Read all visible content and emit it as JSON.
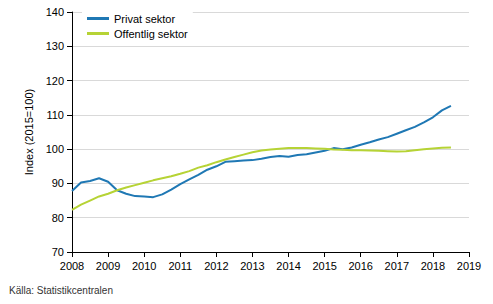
{
  "chart_data": {
    "type": "line",
    "y_label": "Index (2015=100)",
    "source": "Källa: Statistikcentralen",
    "x": [
      2008,
      2008.25,
      2008.5,
      2008.75,
      2009,
      2009.25,
      2009.5,
      2009.75,
      2010,
      2010.25,
      2010.5,
      2010.75,
      2011,
      2011.25,
      2011.5,
      2011.75,
      2012,
      2012.25,
      2012.5,
      2012.75,
      2013,
      2013.25,
      2013.5,
      2013.75,
      2014,
      2014.25,
      2014.5,
      2014.75,
      2015,
      2015.25,
      2015.5,
      2015.75,
      2016,
      2016.25,
      2016.5,
      2016.75,
      2017,
      2017.25,
      2017.5,
      2017.75,
      2018,
      2018.25,
      2018.5
    ],
    "series": [
      {
        "name": "Privat sektor",
        "color": "#1f78b4",
        "values": [
          87.8,
          90.3,
          90.7,
          91.5,
          90.5,
          88,
          87,
          86.3,
          86.2,
          86,
          86.8,
          88.2,
          89.8,
          91.2,
          92.5,
          94,
          95,
          96.3,
          96.5,
          96.7,
          96.8,
          97.2,
          97.7,
          98,
          97.8,
          98.3,
          98.5,
          99,
          99.5,
          100.3,
          100,
          100.5,
          101.3,
          102,
          102.8,
          103.5,
          104.5,
          105.5,
          106.5,
          107.8,
          109.3,
          111.3,
          112.6
        ]
      },
      {
        "name": "Offentlig sektor",
        "color": "#b6d335",
        "values": [
          82.3,
          83.8,
          85,
          86.2,
          87,
          88,
          88.8,
          89.5,
          90.2,
          90.9,
          91.5,
          92.1,
          92.8,
          93.6,
          94.6,
          95.3,
          96.2,
          97,
          97.7,
          98.4,
          99.1,
          99.6,
          99.9,
          100.1,
          100.3,
          100.3,
          100.3,
          100.2,
          100.1,
          99.9,
          99.8,
          99.7,
          99.7,
          99.6,
          99.5,
          99.4,
          99.3,
          99.4,
          99.7,
          100,
          100.2,
          100.4,
          100.5
        ]
      }
    ],
    "xlim": [
      2008,
      2019
    ],
    "xticks": [
      2008,
      2009,
      2010,
      2011,
      2012,
      2013,
      2014,
      2015,
      2016,
      2017,
      2018,
      2019
    ],
    "ylim": [
      70,
      140
    ],
    "yticks": [
      70,
      80,
      90,
      100,
      110,
      120,
      130,
      140
    ],
    "grid": true,
    "legend": "upper left"
  }
}
